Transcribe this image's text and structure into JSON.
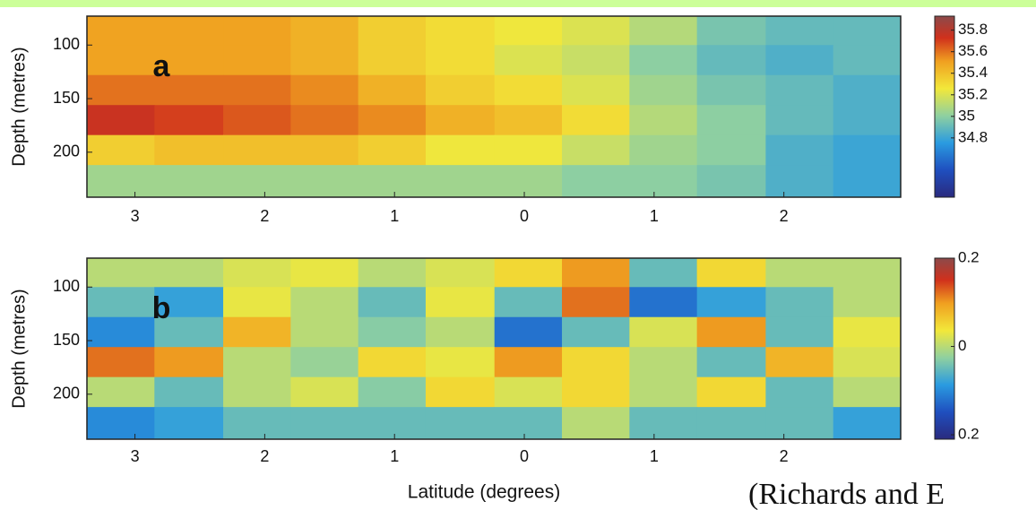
{
  "chart_data": [
    {
      "type": "heatmap",
      "panel_label": "a",
      "y_label": "Depth (metres)",
      "x_edges": [
        -3.37,
        -2.85,
        -2.32,
        -1.8,
        -1.28,
        -0.76,
        -0.23,
        0.29,
        0.81,
        1.33,
        1.86,
        2.38,
        2.9
      ],
      "y_edges": [
        73,
        100,
        128,
        156,
        184,
        212,
        242
      ],
      "z": [
        [
          35.5,
          35.5,
          35.5,
          35.45,
          35.35,
          35.3,
          35.25,
          35.2,
          35.1,
          34.95,
          34.9,
          34.9
        ],
        [
          35.5,
          35.5,
          35.5,
          35.45,
          35.35,
          35.3,
          35.2,
          35.15,
          35.0,
          34.9,
          34.85,
          34.9
        ],
        [
          35.6,
          35.6,
          35.6,
          35.55,
          35.45,
          35.35,
          35.3,
          35.2,
          35.05,
          34.95,
          34.9,
          34.85
        ],
        [
          35.75,
          35.7,
          35.65,
          35.6,
          35.55,
          35.45,
          35.4,
          35.3,
          35.1,
          35.0,
          34.9,
          34.85
        ],
        [
          35.35,
          35.4,
          35.4,
          35.4,
          35.35,
          35.25,
          35.25,
          35.15,
          35.05,
          35.0,
          34.85,
          34.8
        ],
        [
          35.05,
          35.05,
          35.05,
          35.05,
          35.05,
          35.05,
          35.05,
          35.0,
          35.0,
          34.95,
          34.85,
          34.8
        ]
      ],
      "xlim": [
        -3.37,
        2.9
      ],
      "ylim": [
        73,
        242
      ],
      "xticks": [
        {
          "value": -3,
          "label": "3"
        },
        {
          "value": -2,
          "label": "2"
        },
        {
          "value": -1,
          "label": "1"
        },
        0,
        1,
        2
      ],
      "yticks": [
        100,
        150,
        200
      ],
      "clim": [
        34.25,
        35.93
      ],
      "cticks": [
        35.8,
        35.6,
        35.4,
        35.2,
        35,
        34.8
      ]
    },
    {
      "type": "heatmap",
      "panel_label": "b",
      "y_label": "Depth (metres)",
      "x_label": "Latitude (degrees)",
      "x_edges": [
        -3.37,
        -2.85,
        -2.32,
        -1.8,
        -1.28,
        -0.76,
        -0.23,
        0.29,
        0.81,
        1.33,
        1.86,
        2.38,
        2.9
      ],
      "y_edges": [
        73,
        100,
        128,
        156,
        184,
        212,
        242
      ],
      "z": [
        [
          0,
          0,
          0.02,
          0.03,
          0,
          0.02,
          0.05,
          0.1,
          -0.05,
          0.05,
          0,
          0
        ],
        [
          -0.05,
          -0.08,
          0.03,
          0,
          -0.05,
          0.03,
          -0.05,
          0.12,
          -0.12,
          -0.08,
          -0.05,
          0
        ],
        [
          -0.1,
          -0.05,
          0.08,
          0,
          -0.03,
          0,
          -0.12,
          -0.05,
          0.02,
          0.1,
          -0.05,
          0.03
        ],
        [
          0.12,
          0.1,
          0,
          -0.02,
          0.05,
          0.03,
          0.1,
          0.05,
          0,
          -0.05,
          0.08,
          0.02
        ],
        [
          0,
          -0.05,
          0,
          0.02,
          -0.03,
          0.05,
          0.02,
          0.05,
          0,
          0.05,
          -0.05,
          0
        ],
        [
          -0.1,
          -0.08,
          -0.05,
          -0.05,
          -0.05,
          -0.05,
          -0.05,
          0,
          -0.05,
          -0.05,
          -0.05,
          -0.08
        ]
      ],
      "xlim": [
        -3.37,
        2.9
      ],
      "ylim": [
        73,
        242
      ],
      "xticks": [
        {
          "value": -3,
          "label": "3"
        },
        {
          "value": -2,
          "label": "2"
        },
        {
          "value": -1,
          "label": "1"
        },
        0,
        1,
        2
      ],
      "yticks": [
        100,
        150,
        200
      ],
      "clim": [
        -0.21,
        0.2
      ],
      "cticks": [
        0.2,
        0,
        {
          "value": -0.2,
          "label": "0.2"
        }
      ]
    }
  ],
  "footer_text": "(Richards and E"
}
